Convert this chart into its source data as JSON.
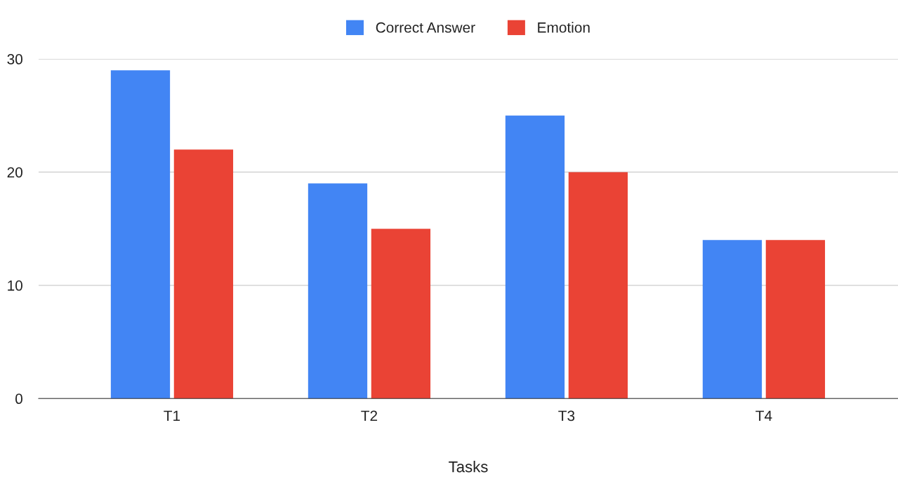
{
  "chart_data": {
    "type": "bar",
    "xlabel": "Tasks",
    "categories": [
      "T1",
      "T2",
      "T3",
      "T4"
    ],
    "series": [
      {
        "name": "Correct Answer",
        "color": "#4285f4",
        "values": [
          29,
          19,
          25,
          14
        ]
      },
      {
        "name": "Emotion",
        "color": "#ea4335",
        "values": [
          22,
          15,
          20,
          14
        ]
      }
    ],
    "ylim": [
      0,
      30
    ],
    "yticks": [
      0,
      10,
      20,
      30
    ],
    "grid": "y",
    "legend": "top"
  }
}
